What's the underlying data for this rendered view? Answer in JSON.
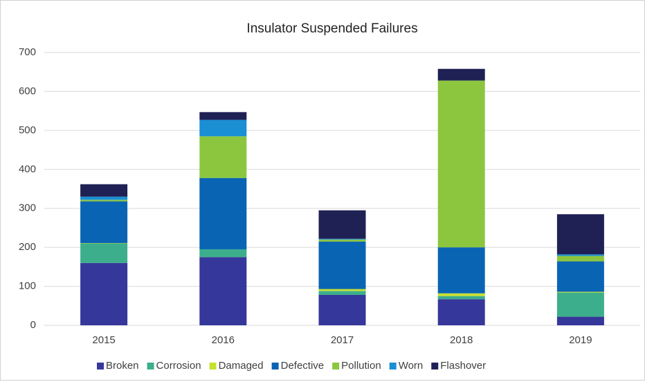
{
  "chart_data": {
    "type": "stacked_bar",
    "title": "Insulator Suspended Failures",
    "categories": [
      "2015",
      "2016",
      "2017",
      "2018",
      "2019"
    ],
    "series": [
      {
        "name": "Broken",
        "color": "#36379a",
        "values": [
          160,
          175,
          78,
          67,
          22
        ]
      },
      {
        "name": "Corrosion",
        "color": "#3cae8c",
        "values": [
          50,
          20,
          10,
          8,
          62
        ]
      },
      {
        "name": "Damaged",
        "color": "#c8e02e",
        "values": [
          1,
          0,
          5,
          7,
          2
        ]
      },
      {
        "name": "Defective",
        "color": "#0a64b4",
        "values": [
          107,
          183,
          122,
          118,
          78
        ]
      },
      {
        "name": "Pollution",
        "color": "#8cc63f",
        "values": [
          4,
          107,
          5,
          428,
          14
        ]
      },
      {
        "name": "Worn",
        "color": "#1a8fd4",
        "values": [
          8,
          42,
          2,
          0,
          4
        ]
      },
      {
        "name": "Flashover",
        "color": "#1f2155",
        "values": [
          32,
          20,
          73,
          30,
          103
        ]
      }
    ],
    "ylim": [
      0,
      700
    ],
    "yticks": [
      0,
      100,
      200,
      300,
      400,
      500,
      600,
      700
    ],
    "grid": true,
    "legend": "bottom"
  }
}
